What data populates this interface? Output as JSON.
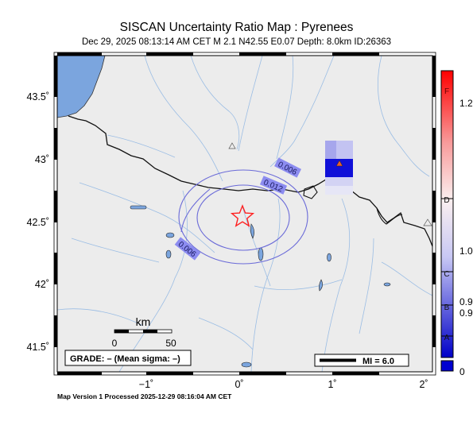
{
  "header": {
    "title": "SISCAN Uncertainty Ratio Map : Pyrenees",
    "subtitle": "Dec 29, 2025 08:13:14 AM CET   M 2.1   N42.55 E0.07   Depth: 8.0km   ID:26363"
  },
  "map": {
    "lat_ticks": [
      "43.5˚",
      "43˚",
      "42.5˚",
      "42˚",
      "41.5˚"
    ],
    "lon_ticks": [
      "−1˚",
      "0˚",
      "1˚",
      "2˚"
    ],
    "contour_labels": [
      "0.006",
      "0.012",
      "0.006"
    ],
    "scale_bar": {
      "unit": "km",
      "min_label": "0",
      "max_label": "50"
    },
    "grade_box": "GRADE: – (Mean sigma: –)",
    "mi_legend": "MI = 6.0",
    "epicenter": {
      "lat": 42.55,
      "lon": 0.07
    },
    "colors": {
      "water": "#7ba5de",
      "land": "#ececec",
      "rivers": "#9bbde4",
      "contours": "#6a6ad8",
      "epicenter": "#ff2020",
      "station": "#e8602c"
    }
  },
  "colorbar": {
    "left_labels": [
      "F",
      "D",
      "C",
      "B",
      "A"
    ],
    "right_labels": [
      "1.2",
      "1.0",
      "0.9",
      "0.9",
      "0"
    ]
  },
  "footer": {
    "text": "Map Version 1 Processed 2025-12-29 08:16:04 AM CET"
  }
}
